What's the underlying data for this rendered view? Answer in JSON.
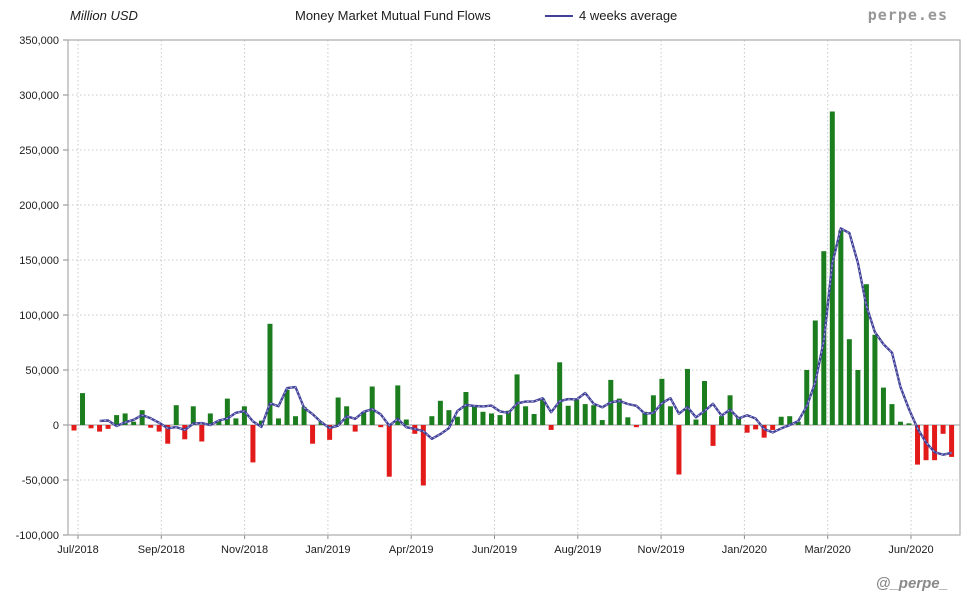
{
  "branding": {
    "site": "perpe.es",
    "handle": "@_perpe_"
  },
  "chart_data": {
    "type": "bar",
    "title": "Money Market Mutual Fund Flows",
    "unit_label": "Million USD",
    "legend_label": "4 weeks average",
    "frequency": "weekly",
    "ylim": [
      -100000,
      350000
    ],
    "y_tick_step": 50000,
    "y_tick_values": [
      350000,
      300000,
      250000,
      200000,
      150000,
      100000,
      50000,
      0,
      -50000,
      -100000
    ],
    "x_tick_labels": [
      "Jul/2018",
      "Sep/2018",
      "Nov/2018",
      "Jan/2019",
      "Apr/2019",
      "Jun/2019",
      "Aug/2019",
      "Nov/2019",
      "Jan/2020",
      "Mar/2020",
      "Jun/2020"
    ],
    "average_window_weeks": 4,
    "values": [
      -5000,
      29000,
      -3000,
      -6000,
      -3500,
      9000,
      10500,
      3000,
      13500,
      -2500,
      -6000,
      -17000,
      18000,
      -13000,
      17000,
      -15000,
      10500,
      4000,
      24000,
      6000,
      17000,
      -34000,
      4000,
      92000,
      6000,
      32000,
      8000,
      16500,
      -17000,
      3000,
      -13500,
      25000,
      17000,
      -6000,
      12000,
      35000,
      -2000,
      -47000,
      36000,
      5000,
      -8000,
      -55000,
      8000,
      22000,
      13500,
      7500,
      30000,
      18000,
      12000,
      10500,
      9000,
      13000,
      46000,
      17000,
      10000,
      24000,
      -4500,
      57000,
      17500,
      23000,
      19000,
      18000,
      4500,
      41000,
      24000,
      7000,
      -2000,
      12000,
      27000,
      42000,
      17000,
      -45000,
      51000,
      5000,
      40000,
      -19000,
      8000,
      27000,
      7500,
      -7000,
      -4000,
      -11500,
      -4500,
      7500,
      8000,
      3000,
      50000,
      95000,
      158000,
      285000,
      177000,
      78000,
      50000,
      128000,
      82000,
      34000,
      19000,
      3000,
      1500,
      -36000,
      -32000,
      -32000,
      -8000,
      -29000
    ],
    "colors": {
      "positive_bar": "#1c7d1f",
      "negative_bar": "#e31a1a",
      "average_line": "#41419a",
      "grid": "#c9c9c9",
      "border": "#ababab",
      "zero_line": "#999999"
    }
  }
}
